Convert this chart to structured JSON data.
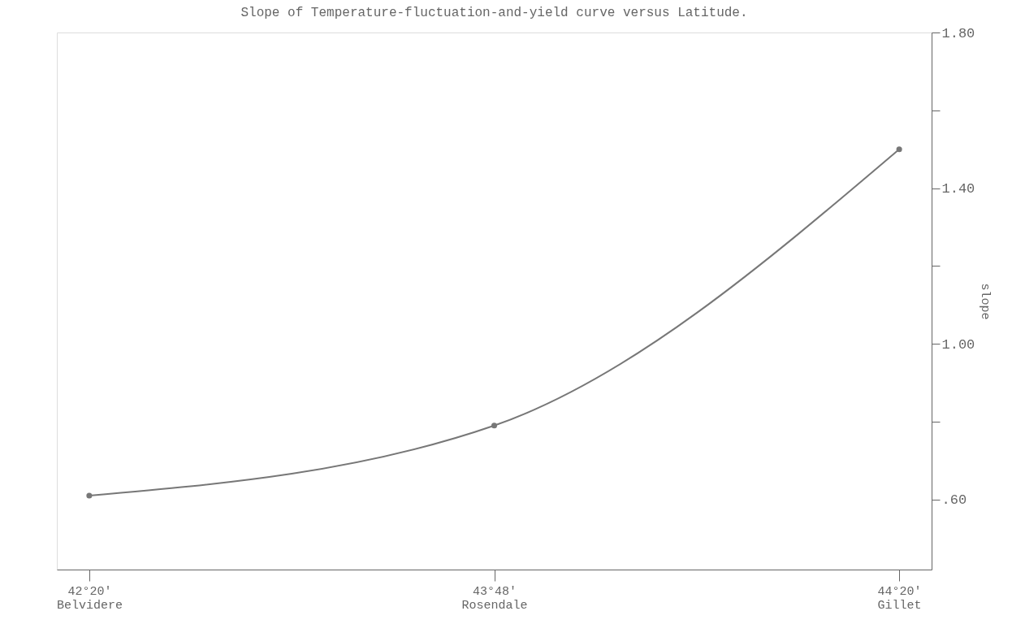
{
  "chart_data": {
    "type": "line",
    "title": "Slope of Temperature-fluctuation-and-yield curve versus Latitude.",
    "ylabel": "slope",
    "categories": [
      "42°20'\nBelvidere",
      "43°48'\nRosendale",
      "44°20'\nGillet"
    ],
    "series": [
      {
        "color": "#777777",
        "values": [
          0.61,
          0.79,
          1.5
        ]
      }
    ],
    "ylim": [
      0.42,
      1.8
    ],
    "yticks": [
      {
        "value": 0.6,
        "label": ".60"
      },
      {
        "value": 0.8,
        "label": null
      },
      {
        "value": 1.0,
        "label": "1.00"
      },
      {
        "value": 1.2,
        "label": null
      },
      {
        "value": 1.4,
        "label": "1.40"
      },
      {
        "value": 1.6,
        "label": null
      },
      {
        "value": 1.8,
        "label": "1.80"
      }
    ],
    "marker": "circle",
    "grid": false
  }
}
